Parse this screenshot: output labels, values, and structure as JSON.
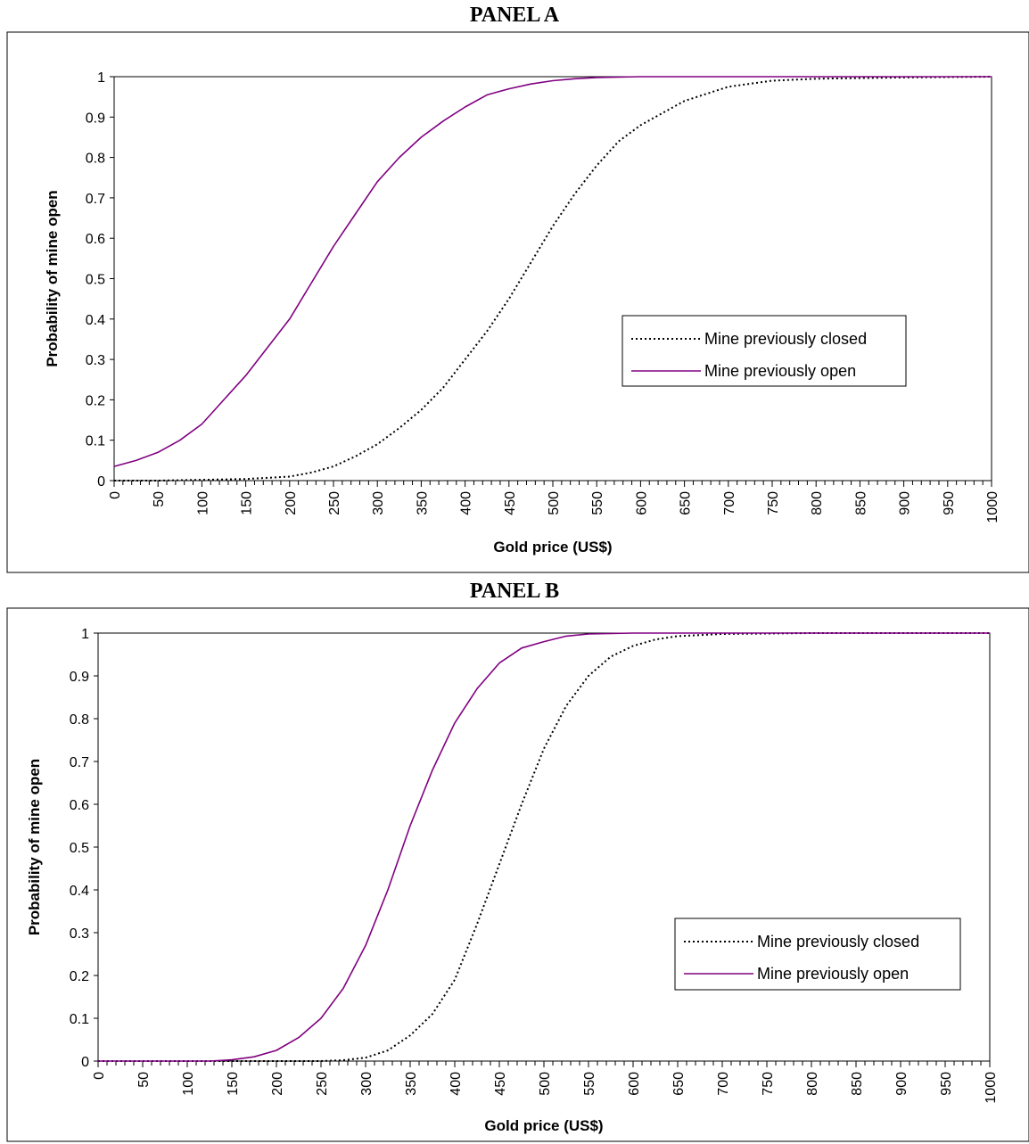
{
  "colors": {
    "open_line": "#800080",
    "closed_line": "#000000",
    "frame": "#000000",
    "background": "#ffffff"
  },
  "chart_data": [
    {
      "type": "line",
      "title": "PANEL A",
      "xlabel": "Gold price (US$)",
      "ylabel": "Probability of mine open",
      "xlim": [
        0,
        1000
      ],
      "ylim": [
        0,
        1
      ],
      "x_tick_labels": [
        "0",
        "50",
        "100",
        "150",
        "200",
        "250",
        "300",
        "350",
        "400",
        "450",
        "500",
        "550",
        "600",
        "650",
        "700",
        "750",
        "800",
        "850",
        "900",
        "950",
        "1000"
      ],
      "y_tick_labels": [
        "0",
        "0.1",
        "0.2",
        "0.3",
        "0.4",
        "0.5",
        "0.6",
        "0.7",
        "0.8",
        "0.9",
        "1"
      ],
      "legend_position": "right",
      "grid": false,
      "series": [
        {
          "name": "Mine previously closed",
          "style": "dotted",
          "x": [
            0,
            50,
            100,
            150,
            200,
            225,
            250,
            275,
            300,
            325,
            350,
            375,
            400,
            425,
            450,
            475,
            500,
            525,
            550,
            575,
            600,
            650,
            700,
            750,
            800,
            900,
            1000
          ],
          "values": [
            0,
            0,
            0.002,
            0.004,
            0.01,
            0.02,
            0.035,
            0.06,
            0.09,
            0.13,
            0.175,
            0.23,
            0.3,
            0.37,
            0.45,
            0.54,
            0.63,
            0.71,
            0.78,
            0.84,
            0.88,
            0.94,
            0.975,
            0.99,
            0.995,
            0.998,
            1
          ]
        },
        {
          "name": "Mine previously open",
          "style": "solid",
          "x": [
            0,
            25,
            50,
            75,
            100,
            125,
            150,
            175,
            200,
            225,
            250,
            275,
            300,
            325,
            350,
            375,
            400,
            425,
            450,
            475,
            500,
            525,
            550,
            575,
            600,
            700,
            800,
            900,
            1000
          ],
          "values": [
            0.035,
            0.05,
            0.07,
            0.1,
            0.14,
            0.2,
            0.26,
            0.33,
            0.4,
            0.49,
            0.58,
            0.66,
            0.74,
            0.8,
            0.85,
            0.89,
            0.925,
            0.955,
            0.97,
            0.982,
            0.99,
            0.995,
            0.998,
            0.999,
            1,
            1,
            1,
            1,
            1
          ]
        }
      ]
    },
    {
      "type": "line",
      "title": "PANEL B",
      "xlabel": "Gold price (US$)",
      "ylabel": "Probability of mine open",
      "xlim": [
        0,
        1000
      ],
      "ylim": [
        0,
        1
      ],
      "x_tick_labels": [
        "0",
        "50",
        "100",
        "150",
        "200",
        "250",
        "300",
        "350",
        "400",
        "450",
        "500",
        "550",
        "600",
        "650",
        "700",
        "750",
        "800",
        "850",
        "900",
        "950",
        "1000"
      ],
      "y_tick_labels": [
        "0",
        "0.1",
        "0.2",
        "0.3",
        "0.4",
        "0.5",
        "0.6",
        "0.7",
        "0.8",
        "0.9",
        "1"
      ],
      "legend_position": "bottom-right",
      "grid": false,
      "series": [
        {
          "name": "Mine previously closed",
          "style": "dotted",
          "x": [
            0,
            250,
            275,
            300,
            325,
            350,
            375,
            400,
            425,
            450,
            475,
            500,
            525,
            550,
            575,
            600,
            625,
            650,
            700,
            800,
            1000
          ],
          "values": [
            0,
            0,
            0.002,
            0.008,
            0.025,
            0.06,
            0.11,
            0.19,
            0.32,
            0.46,
            0.6,
            0.73,
            0.83,
            0.9,
            0.945,
            0.97,
            0.985,
            0.993,
            0.998,
            1,
            1
          ]
        },
        {
          "name": "Mine previously open",
          "style": "solid",
          "x": [
            0,
            125,
            150,
            175,
            200,
            225,
            250,
            275,
            300,
            325,
            350,
            375,
            400,
            425,
            450,
            475,
            500,
            525,
            550,
            600,
            700,
            1000
          ],
          "values": [
            0,
            0,
            0.003,
            0.01,
            0.025,
            0.055,
            0.1,
            0.17,
            0.27,
            0.4,
            0.55,
            0.68,
            0.79,
            0.87,
            0.93,
            0.965,
            0.98,
            0.993,
            0.998,
            1,
            1,
            1
          ]
        }
      ]
    }
  ]
}
